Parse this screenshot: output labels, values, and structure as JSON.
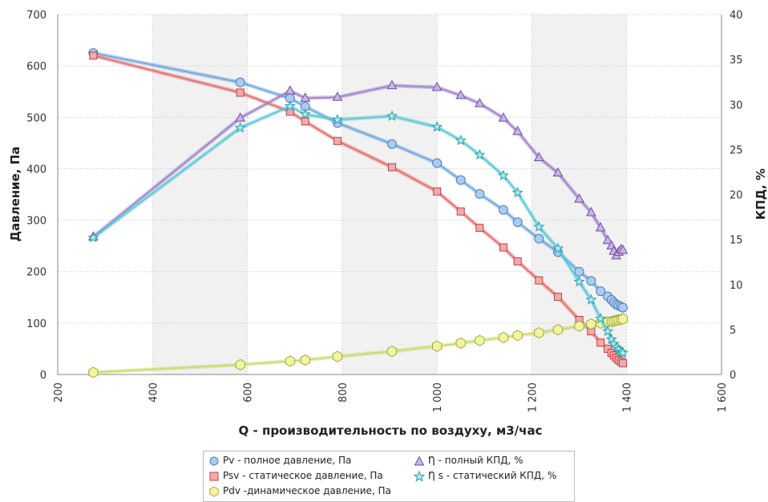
{
  "chart_data": {
    "type": "line",
    "xlabel": "Q - производительность по воздуху, м3/час",
    "ylabel": "Давление, Па",
    "y2label": "КПД, %",
    "xlim": [
      200,
      1600
    ],
    "ylim": [
      0,
      700
    ],
    "y2lim": [
      0,
      40
    ],
    "x_ticks": [
      "200",
      "400",
      "600",
      "800",
      "1 000",
      "1 200",
      "1 400",
      "1 600"
    ],
    "y_ticks": [
      "0",
      "100",
      "200",
      "300",
      "400",
      "500",
      "600",
      "700"
    ],
    "y2_ticks": [
      "0",
      "5",
      "10",
      "15",
      "20",
      "25",
      "30",
      "35",
      "40"
    ],
    "grid": true,
    "legend_position": "bottom",
    "series": [
      {
        "name": "Pv - полное давление, Па",
        "axis": "left",
        "marker": "circle",
        "color": "#6ba5dd",
        "fill": "#aaccf0",
        "x": [
          275,
          585,
          690,
          722,
          790,
          905,
          1000,
          1050,
          1090,
          1140,
          1170,
          1215,
          1255,
          1300,
          1325,
          1345,
          1360,
          1368,
          1373,
          1378,
          1383,
          1388,
          1392
        ],
        "y": [
          625,
          568,
          537,
          521,
          489,
          448,
          411,
          378,
          351,
          320,
          296,
          264,
          238,
          200,
          182,
          162,
          152,
          145,
          140,
          136,
          134,
          132,
          130
        ]
      },
      {
        "name": "Psv - статическое давление, Па",
        "axis": "left",
        "marker": "square",
        "color": "#e26a6a",
        "fill": "#f2aaaa",
        "x": [
          275,
          585,
          690,
          722,
          790,
          905,
          1000,
          1050,
          1090,
          1140,
          1170,
          1215,
          1255,
          1300,
          1325,
          1345,
          1360,
          1368,
          1373,
          1378,
          1383,
          1388,
          1392
        ],
        "y": [
          620,
          548,
          511,
          492,
          454,
          403,
          356,
          317,
          285,
          247,
          220,
          183,
          151,
          106,
          84,
          62,
          50,
          42,
          37,
          32,
          28,
          25,
          22
        ]
      },
      {
        "name": "Pdv -динамическое давление, Па",
        "axis": "left",
        "marker": "hexagon",
        "color": "#c9d96a",
        "fill": "#f2f5a0",
        "x": [
          275,
          585,
          690,
          722,
          790,
          905,
          1000,
          1050,
          1090,
          1140,
          1170,
          1215,
          1255,
          1300,
          1325,
          1345,
          1360,
          1368,
          1373,
          1378,
          1383,
          1388,
          1392
        ],
        "y": [
          4,
          19,
          26,
          28,
          35,
          45,
          55,
          61,
          66,
          72,
          76,
          81,
          87,
          94,
          98,
          100,
          102,
          103,
          104,
          105,
          106,
          107,
          108
        ]
      },
      {
        "name": "Ƞ - полный КПД, %",
        "axis": "right",
        "marker": "triangle",
        "color": "#9c80c8",
        "fill": "#c8b4e6",
        "x": [
          275,
          585,
          690,
          722,
          790,
          905,
          1000,
          1050,
          1090,
          1140,
          1170,
          1215,
          1255,
          1300,
          1325,
          1345,
          1360,
          1368,
          1373,
          1378,
          1383,
          1388,
          1392
        ],
        "y": [
          15.3,
          28.5,
          31.5,
          30.7,
          30.8,
          32.1,
          31.9,
          31.0,
          30.1,
          28.5,
          27.0,
          24.1,
          22.4,
          19.5,
          18.0,
          16.3,
          14.9,
          14.3,
          13.7,
          13.2,
          13.6,
          13.9,
          13.8
        ]
      },
      {
        "name": "Ƞ s - статический КПД, %",
        "axis": "right",
        "marker": "star",
        "color": "#57c7d3",
        "fill": "#a8ecf2",
        "x": [
          275,
          585,
          690,
          722,
          790,
          905,
          1000,
          1050,
          1090,
          1140,
          1170,
          1215,
          1255,
          1300,
          1325,
          1345,
          1360,
          1368,
          1373,
          1378,
          1383,
          1388,
          1392
        ],
        "y": [
          15.2,
          27.4,
          29.8,
          28.9,
          28.3,
          28.7,
          27.5,
          26.0,
          24.4,
          22.1,
          20.2,
          16.4,
          14.0,
          10.3,
          8.3,
          6.2,
          4.8,
          3.9,
          3.4,
          3.0,
          2.8,
          2.5,
          2.4
        ]
      }
    ]
  }
}
